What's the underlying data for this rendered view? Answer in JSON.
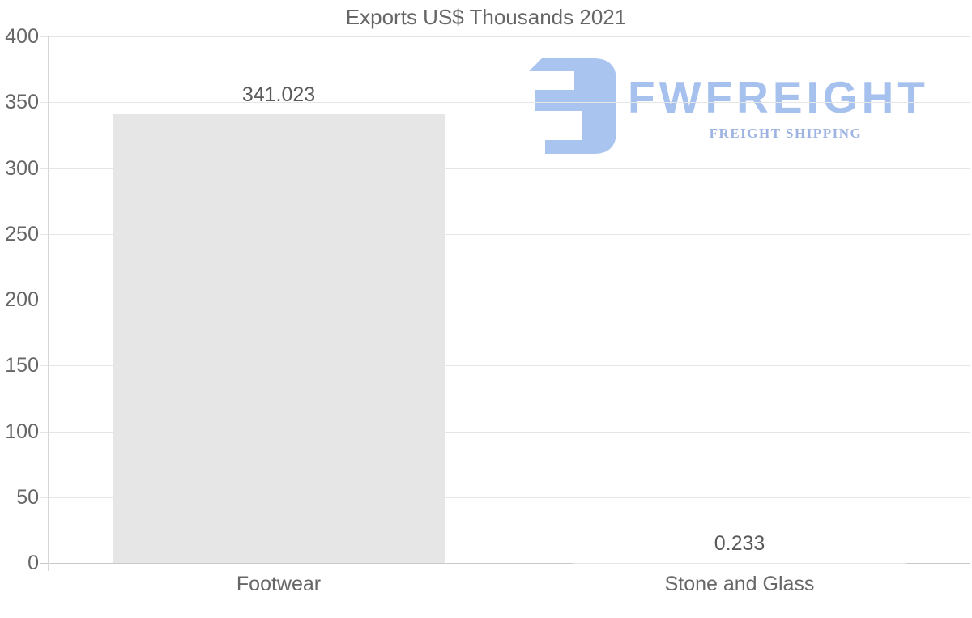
{
  "chart_data": {
    "type": "bar",
    "title": "Exports US$ Thousands 2021",
    "categories": [
      "Footwear",
      "Stone and Glass"
    ],
    "values": [
      341.023,
      0.233
    ],
    "value_labels": [
      "341.023",
      "0.233"
    ],
    "xlabel": "",
    "ylabel": "",
    "ylim": [
      0,
      400
    ],
    "ytick_step": 50,
    "ytick_labels": [
      "0",
      "50",
      "100",
      "150",
      "200",
      "250",
      "300",
      "350",
      "400"
    ],
    "grid": "on",
    "legend": "none",
    "layout_hints": {
      "orientation": "vertical-bars",
      "data_labels_position": "above-bars",
      "category_boundary_gridline": true,
      "bar_width_fraction": 0.72
    }
  },
  "watermark": {
    "brand": "FWFREIGHT",
    "tagline": "FREIGHT SHIPPING",
    "icon": "mirrored-e-monogram",
    "brand_color": "#a6c1ee",
    "tagline_color": "#9db3e2",
    "icon_color": "#a9c4ef"
  },
  "colors": {
    "background": "#ffffff",
    "title_text": "#666666",
    "axis_label_text": "#666666",
    "value_label_text": "#595959",
    "gridline": "#e5e5e5",
    "axis_line": "#d6d6d6",
    "baseline": "#c9c9c9",
    "bar_fill": "#e6e6e6"
  }
}
